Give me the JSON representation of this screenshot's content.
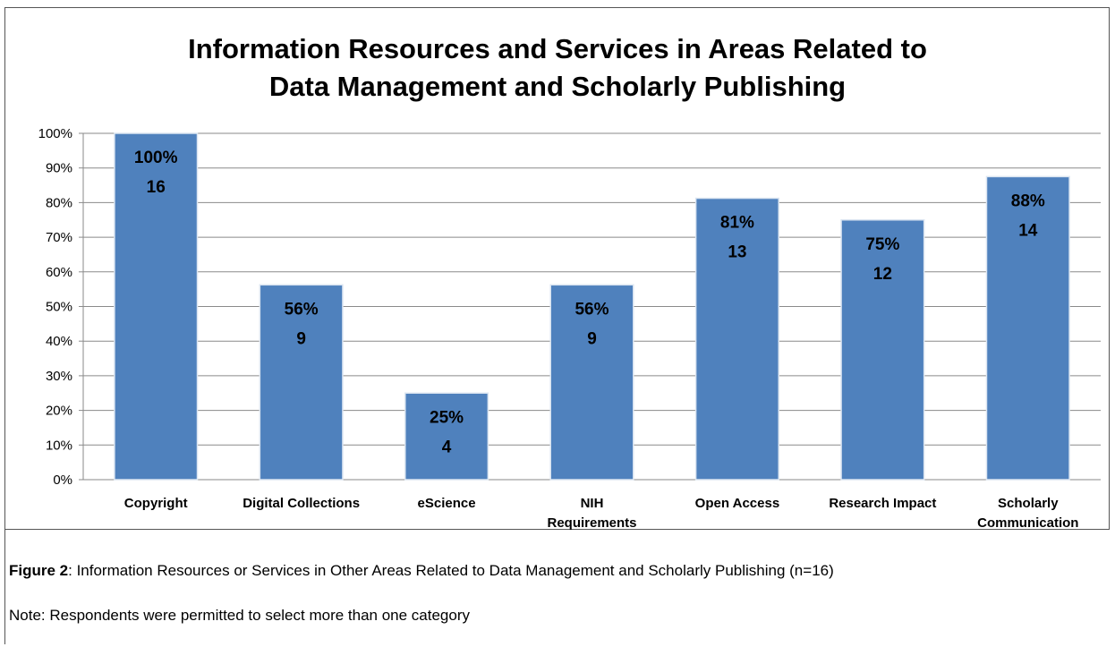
{
  "chart_data": {
    "type": "bar",
    "title": "Information Resources and Services in Areas Related to\nData Management and Scholarly Publishing",
    "categories": [
      "Copyright",
      "Digital Collections",
      "eScience",
      "NIH\nRequirements",
      "Open Access",
      "Research Impact",
      "Scholarly\nCommunication"
    ],
    "values": [
      100,
      56.25,
      25,
      56.25,
      81.25,
      75,
      87.5
    ],
    "value_labels": [
      "100%",
      "56%",
      "25%",
      "56%",
      "81%",
      "75%",
      "88%"
    ],
    "counts": [
      16,
      9,
      4,
      9,
      13,
      12,
      14
    ],
    "color": "#4f81bd",
    "ylim": [
      0,
      100
    ],
    "yticks": [
      {
        "value": 0,
        "label": "0%"
      },
      {
        "value": 10,
        "label": "10%"
      },
      {
        "value": 20,
        "label": "20%"
      },
      {
        "value": 30,
        "label": "30%"
      },
      {
        "value": 40,
        "label": "40%"
      },
      {
        "value": 50,
        "label": "50%"
      },
      {
        "value": 60,
        "label": "60%"
      },
      {
        "value": 70,
        "label": "70%"
      },
      {
        "value": 80,
        "label": "80%"
      },
      {
        "value": 90,
        "label": "90%"
      },
      {
        "value": 100,
        "label": "100%"
      }
    ],
    "grid": true
  },
  "caption": {
    "figure_label": "Figure 2",
    "text": ": Information Resources or Services in Other Areas Related to Data Management and Scholarly Publishing (n=16)",
    "note": "Note: Respondents were permitted to select more than one category"
  }
}
